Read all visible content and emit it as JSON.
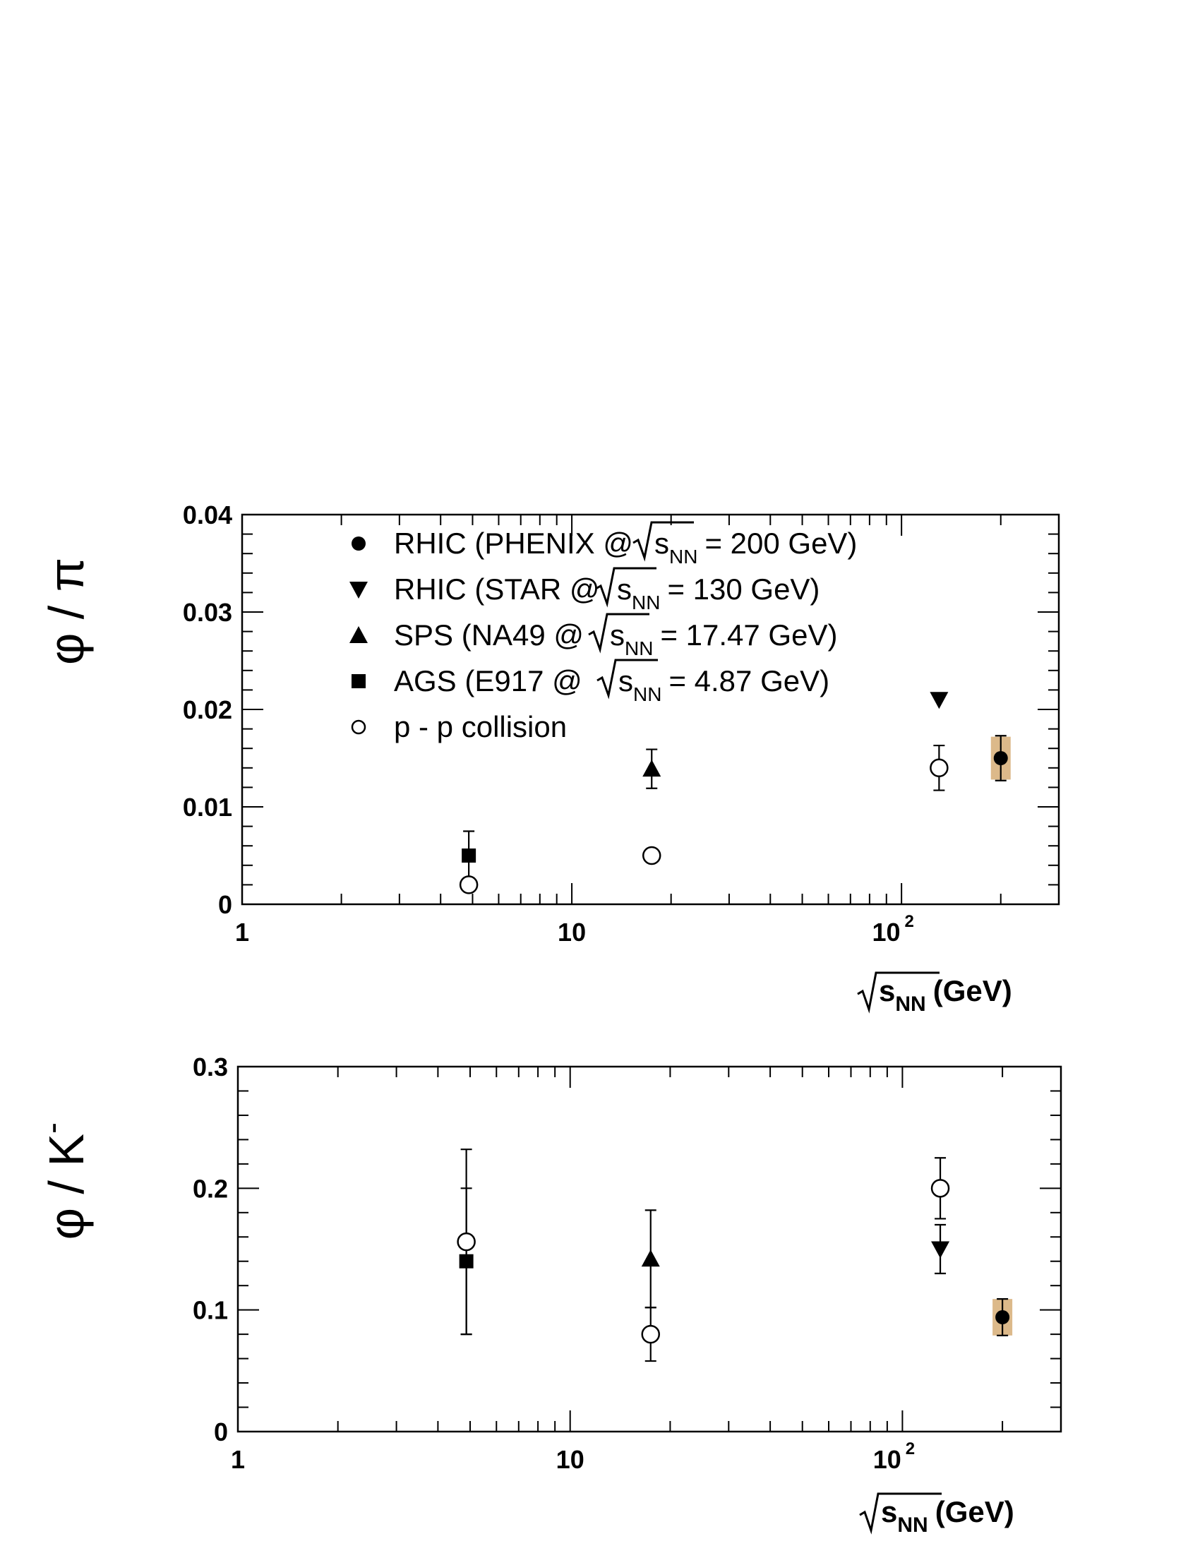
{
  "figure": {
    "background": "#ffffff",
    "band_color": "#dcb98a"
  },
  "chart_data": [
    {
      "type": "scatter",
      "panel": "top",
      "x_scale": "log",
      "xlim": [
        1,
        300
      ],
      "ylim": [
        0,
        0.04
      ],
      "ylabel": {
        "main": "φ / π"
      },
      "xlabel": {
        "radicand": "s",
        "subscript": "NN",
        "unit": "(GeV)"
      },
      "xticks_major": [
        {
          "value": 1,
          "label": "1"
        },
        {
          "value": 10,
          "label": "10"
        },
        {
          "value": 100,
          "label": "10",
          "sup": "2"
        }
      ],
      "yticks_major": [
        {
          "value": 0,
          "label": "0"
        },
        {
          "value": 0.01,
          "label": "0.01"
        },
        {
          "value": 0.02,
          "label": "0.02"
        },
        {
          "value": 0.03,
          "label": "0.03"
        },
        {
          "value": 0.04,
          "label": "0.04"
        }
      ],
      "y_minor_step": 0.002,
      "legend": {
        "placement": "top-left",
        "entries": [
          {
            "marker": "circle-filled",
            "prefix": "RHIC (PHENIX @",
            "radicand": "s",
            "subscript": "NN",
            "suffix": "= 200 GeV)"
          },
          {
            "marker": "triangle-down",
            "prefix": "RHIC (STAR @",
            "radicand": "s",
            "subscript": "NN",
            "suffix": "= 130 GeV)"
          },
          {
            "marker": "triangle-up",
            "prefix": "SPS (NA49 @",
            "radicand": "s",
            "subscript": "NN",
            "suffix": "= 17.47 GeV)"
          },
          {
            "marker": "square",
            "prefix": "AGS (E917 @",
            "radicand": "s",
            "subscript": "NN",
            "suffix": "= 4.87 GeV)"
          },
          {
            "marker": "circle-open",
            "prefix": "p - p  collision"
          }
        ]
      },
      "series": [
        {
          "name": "RHIC (PHENIX)",
          "marker": "circle-filled",
          "points": [
            {
              "x": 200,
              "y": 0.015,
              "err": 0.0023,
              "sys_band": [
                0.0128,
                0.0172
              ]
            }
          ]
        },
        {
          "name": "RHIC (STAR)",
          "marker": "triangle-down",
          "points": [
            {
              "x": 130,
              "y": 0.021
            }
          ]
        },
        {
          "name": "SPS (NA49)",
          "marker": "triangle-up",
          "points": [
            {
              "x": 17.47,
              "y": 0.0139,
              "err": 0.002
            }
          ]
        },
        {
          "name": "AGS (E917)",
          "marker": "square",
          "points": [
            {
              "x": 4.87,
              "y": 0.005,
              "err": 0.0025
            }
          ]
        },
        {
          "name": "p - p  collision",
          "marker": "circle-open",
          "points": [
            {
              "x": 4.87,
              "y": 0.002
            },
            {
              "x": 17.47,
              "y": 0.005
            },
            {
              "x": 130,
              "y": 0.014,
              "err": 0.0023
            }
          ]
        }
      ]
    },
    {
      "type": "scatter",
      "panel": "bottom",
      "x_scale": "log",
      "xlim": [
        1,
        300
      ],
      "ylim": [
        0,
        0.3
      ],
      "ylabel": {
        "main": "φ / K",
        "sup": "-"
      },
      "xlabel": {
        "radicand": "s",
        "subscript": "NN",
        "unit": "(GeV)"
      },
      "xticks_major": [
        {
          "value": 1,
          "label": "1"
        },
        {
          "value": 10,
          "label": "10"
        },
        {
          "value": 100,
          "label": "10",
          "sup": "2"
        }
      ],
      "yticks_major": [
        {
          "value": 0,
          "label": "0"
        },
        {
          "value": 0.1,
          "label": "0.1"
        },
        {
          "value": 0.2,
          "label": "0.2"
        },
        {
          "value": 0.3,
          "label": "0.3"
        }
      ],
      "y_minor_step": 0.02,
      "series": [
        {
          "name": "RHIC (PHENIX)",
          "marker": "circle-filled",
          "points": [
            {
              "x": 200,
              "y": 0.094,
              "err": 0.015,
              "sys_band": [
                0.079,
                0.109
              ]
            }
          ]
        },
        {
          "name": "RHIC (STAR)",
          "marker": "triangle-down",
          "points": [
            {
              "x": 130,
              "y": 0.15,
              "err": 0.02
            }
          ]
        },
        {
          "name": "SPS (NA49)",
          "marker": "triangle-up",
          "points": [
            {
              "x": 17.47,
              "y": 0.142,
              "err": 0.04
            }
          ]
        },
        {
          "name": "AGS (E917)",
          "marker": "square",
          "points": [
            {
              "x": 4.87,
              "y": 0.14,
              "err": 0.06
            }
          ]
        },
        {
          "name": "p - p  collision",
          "marker": "circle-open",
          "points": [
            {
              "x": 4.87,
              "y": 0.156,
              "err": 0.076
            },
            {
              "x": 17.47,
              "y": 0.08,
              "err": 0.022
            },
            {
              "x": 130,
              "y": 0.2,
              "err": 0.025
            }
          ]
        }
      ]
    }
  ]
}
